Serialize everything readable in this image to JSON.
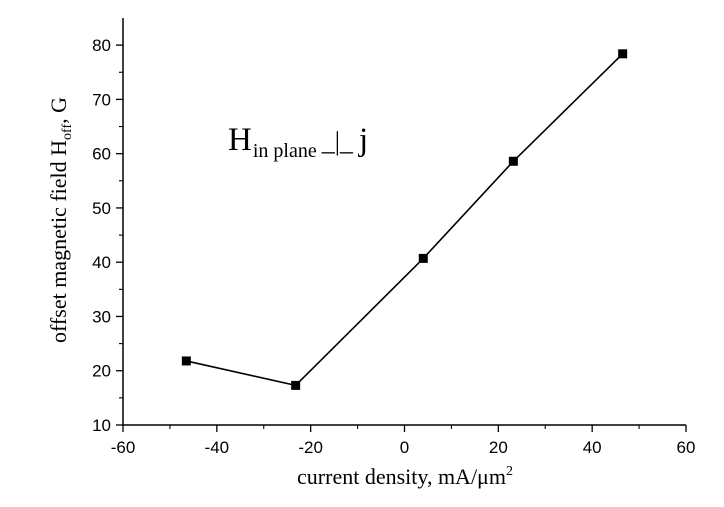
{
  "chart_data": {
    "type": "line",
    "title": "",
    "xlabel": {
      "text": "current density, mA/μm",
      "superscript": "2"
    },
    "ylabel": {
      "prefix": "offset magnetic field H",
      "subscript": "off",
      "suffix": ", G"
    },
    "xlim": [
      -60,
      60
    ],
    "ylim": [
      10,
      85
    ],
    "xticks": [
      -60,
      -40,
      -20,
      0,
      20,
      40,
      60
    ],
    "yticks": [
      10,
      20,
      30,
      40,
      50,
      60,
      70,
      80
    ],
    "grid": false,
    "series": [
      {
        "marker": "square",
        "color": "#000000",
        "segments": [
          [
            [
              -46.5,
              21.8
            ],
            [
              -23.2,
              17.3
            ]
          ],
          [
            [
              -23.2,
              17.3
            ],
            [
              4.0,
              40.7
            ],
            [
              23.2,
              58.6
            ],
            [
              46.5,
              78.4
            ]
          ]
        ],
        "points": [
          {
            "x": -46.5,
            "y": 21.8
          },
          {
            "x": -23.2,
            "y": 17.3
          },
          {
            "x": 4.0,
            "y": 40.7
          },
          {
            "x": 23.2,
            "y": 58.6
          },
          {
            "x": 46.5,
            "y": 78.4
          }
        ]
      }
    ],
    "annotation": {
      "main": "H",
      "subscript": "in plane",
      "symbol": "_|_",
      "suffix": "j"
    }
  }
}
